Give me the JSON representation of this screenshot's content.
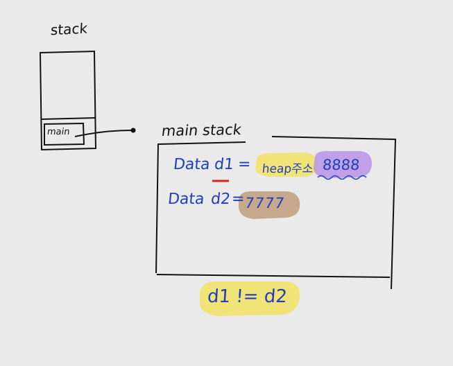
{
  "stack": {
    "title": "stack",
    "frame_label": "main"
  },
  "main_stack": {
    "title": "main stack",
    "line1": {
      "type": "Data",
      "variable": "d1",
      "equals": "=",
      "heap_label": "heap주소",
      "address": "8888"
    },
    "line2": {
      "type": "Data",
      "variable": "d2",
      "equals": "=",
      "address": "7777"
    }
  },
  "comparison": "d1 != d2",
  "colors": {
    "ink_black": "#111111",
    "ink_blue": "#1f3fbf",
    "highlight_yellow": "#f1e26a",
    "highlight_purple": "#b894e6",
    "highlight_brown": "#c2a183",
    "underline_red": "#e02020",
    "background": "#eaeaea"
  }
}
